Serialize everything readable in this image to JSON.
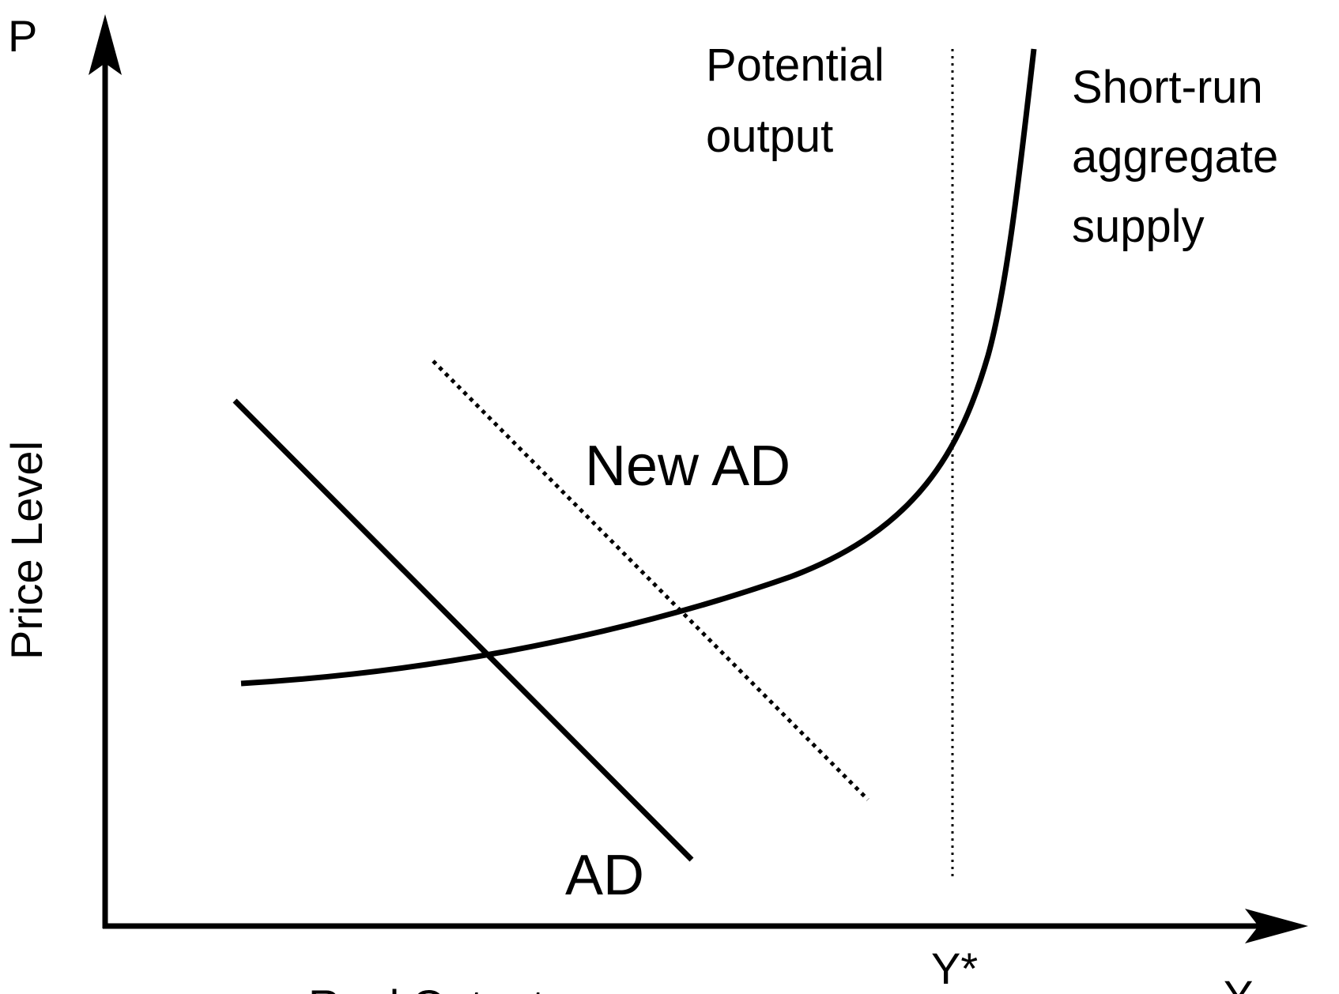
{
  "diagram": {
    "y_axis_letter": "P",
    "y_axis_title": "Price Level",
    "x_axis_letter": "Y",
    "x_axis_title": "Real Output",
    "potential_output_label": [
      "Potential",
      "output"
    ],
    "potential_output_tick": "Y*",
    "sras_label": [
      "Short-run",
      "aggregate",
      "supply"
    ],
    "ad_label": "AD",
    "new_ad_label": "New AD"
  }
}
